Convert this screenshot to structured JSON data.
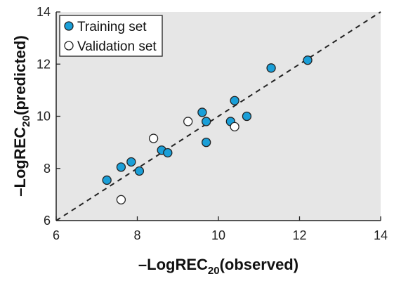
{
  "chart_data": {
    "type": "scatter",
    "xlabel_main": "–LogREC",
    "xlabel_sub": "20",
    "xlabel_tail": "(observed)",
    "ylabel_main": "–LogREC",
    "ylabel_sub": "20",
    "ylabel_tail": "(predicted)",
    "xlim": [
      6,
      14
    ],
    "ylim": [
      6,
      14
    ],
    "xticks": [
      "6",
      "8",
      "10",
      "12",
      "14"
    ],
    "yticks": [
      "6",
      "8",
      "10",
      "12",
      "14"
    ],
    "grid": false,
    "legend_position": "top-left",
    "reference_line": "dashed y = x",
    "series": [
      {
        "name": "Training set",
        "marker": "filled-circle",
        "color": "#1a9fd8",
        "points": [
          [
            7.25,
            7.55
          ],
          [
            7.6,
            8.05
          ],
          [
            7.85,
            8.25
          ],
          [
            8.05,
            7.9
          ],
          [
            8.6,
            8.7
          ],
          [
            8.75,
            8.6
          ],
          [
            9.6,
            10.15
          ],
          [
            9.7,
            9.8
          ],
          [
            9.7,
            9.0
          ],
          [
            10.3,
            9.8
          ],
          [
            10.4,
            10.6
          ],
          [
            10.7,
            10.0
          ],
          [
            11.3,
            11.85
          ],
          [
            12.2,
            12.15
          ]
        ]
      },
      {
        "name": "Validation set",
        "marker": "open-circle",
        "color": "#ffffff",
        "points": [
          [
            7.6,
            6.8
          ],
          [
            8.4,
            9.15
          ],
          [
            9.25,
            9.8
          ],
          [
            10.4,
            9.6
          ]
        ]
      }
    ]
  }
}
